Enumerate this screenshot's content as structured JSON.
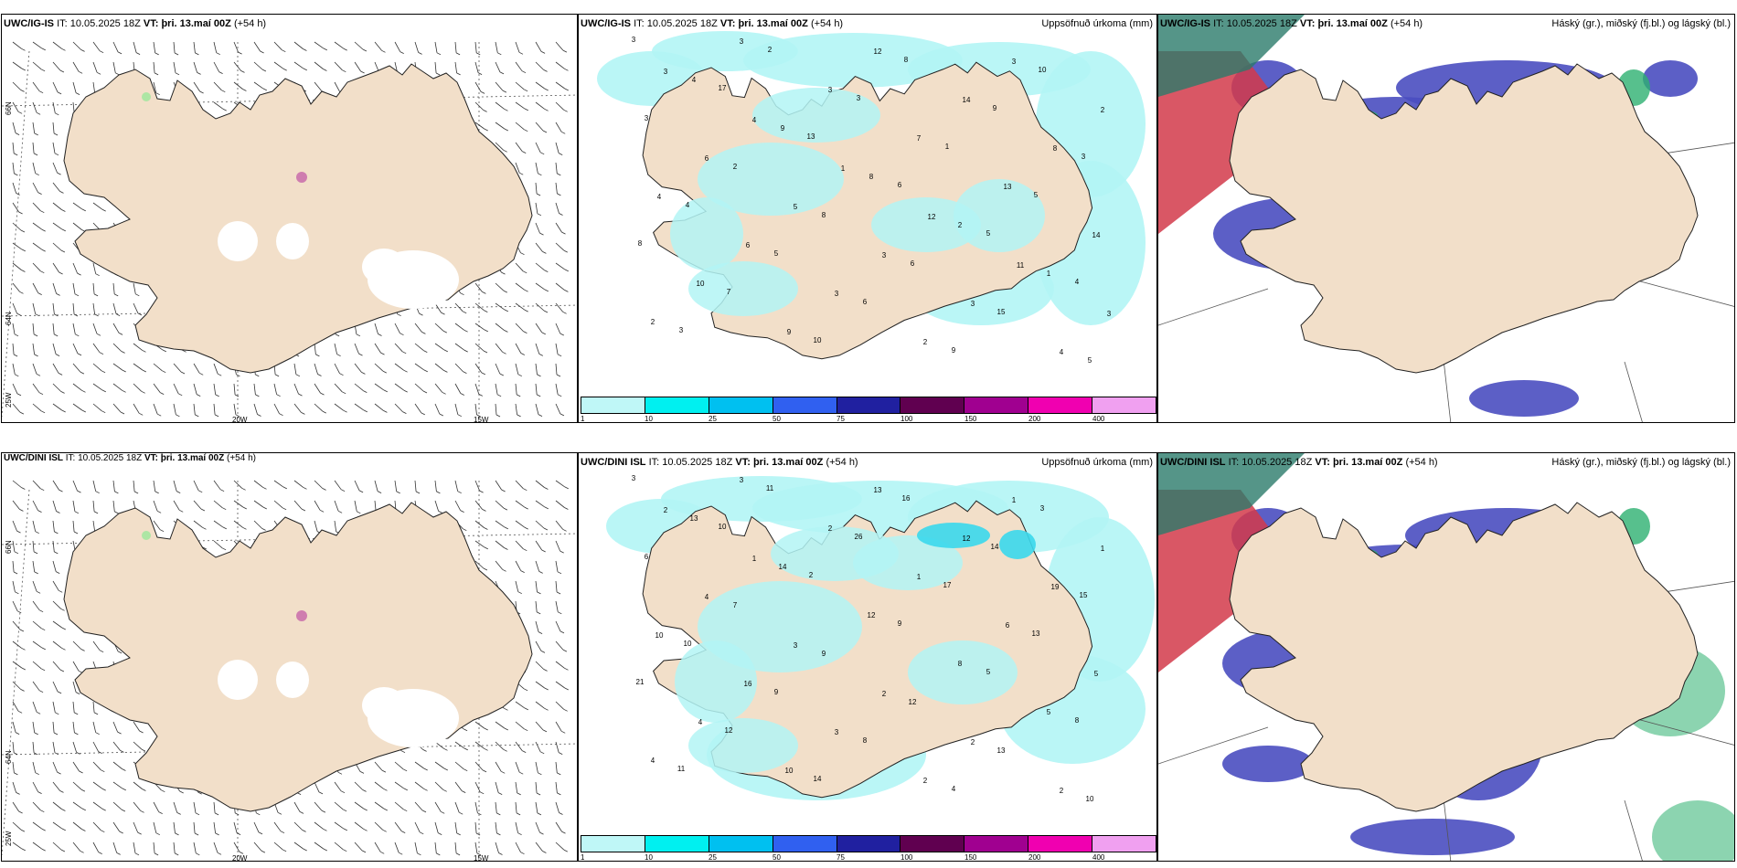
{
  "rows": [
    {
      "wind_panel": {
        "model": "UWC/IG-IS",
        "it_label": "IT:",
        "it_value": "10.05.2025 18Z",
        "vt_label": "VT: þri. 13.maí 00Z",
        "lead": "(+54 h)"
      },
      "precip_panel": {
        "model": "UWC/IG-IS",
        "it_label": "IT:",
        "it_value": "10.05.2025 18Z",
        "vt_label": "VT: þri. 13.maí 00Z",
        "lead": "(+54 h)",
        "right_title": "Uppsöfnuð úrkoma (mm)"
      },
      "cloud_panel": {
        "model": "UWC/IG-IS",
        "it_label": "IT:",
        "it_value": "10.05.2025 18Z",
        "vt_label": "VT: þri. 13.maí 00Z",
        "lead": "(+54 h)",
        "right_title": "Háský (gr.), miðský (fj.bl.) og lágský (bl.)"
      }
    },
    {
      "wind_panel": {
        "model": "UWC/DINI ISL",
        "it_label": "IT:",
        "it_value": "10.05.2025 18Z",
        "vt_label": "VT: þri. 13.maí 00Z",
        "lead": "(+54 h)"
      },
      "precip_panel": {
        "model": "UWC/DINI ISL",
        "it_label": "IT:",
        "it_value": "10.05.2025 18Z",
        "vt_label": "VT: þri. 13.maí 00Z",
        "lead": "(+54 h)",
        "right_title": "Uppsöfnuð úrkoma (mm)"
      },
      "cloud_panel": {
        "model": "UWC/DINI ISL",
        "it_label": "IT:",
        "it_value": "10.05.2025 18Z",
        "vt_label": "VT: þri. 13.maí 00Z",
        "lead": "(+54 h)",
        "right_title": "Háský (gr.), miðský (fj.bl.) og lágský (bl.)"
      }
    }
  ],
  "grid_labels": {
    "lat_66": "66N",
    "lat_64": "64N",
    "lon_25": "25W",
    "lon_20": "20W",
    "lon_15": "15W"
  },
  "precip_scale": {
    "labels": [
      "1",
      "10",
      "25",
      "50",
      "75",
      "100",
      "150",
      "200",
      "400"
    ],
    "colors": [
      "#bff7f7",
      "#00f0f0",
      "#00c0f0",
      "#3060f0",
      "#2020a0",
      "#600050",
      "#a00090",
      "#f000b0",
      "#f0a0f0"
    ]
  },
  "precip_numbers_top": [
    "3",
    "17",
    "13",
    "6",
    "5",
    "4",
    "3",
    "2",
    "3",
    "1",
    "5",
    "8",
    "7",
    "10",
    "8",
    "9",
    "3",
    "4",
    "5",
    "6",
    "9",
    "10",
    "3",
    "2",
    "8",
    "6",
    "15",
    "5",
    "4",
    "9",
    "8",
    "2",
    "1",
    "2",
    "3",
    "3",
    "7",
    "13",
    "14",
    "10",
    "9",
    "12",
    "14",
    "8",
    "4",
    "6",
    "3",
    "2",
    "3",
    "2",
    "6",
    "5",
    "3",
    "3",
    "4",
    "3",
    "4",
    "1",
    "12",
    "11",
    "3"
  ],
  "precip_numbers_bottom": [
    "3",
    "10",
    "2",
    "9",
    "5",
    "8",
    "11",
    "11",
    "26",
    "17",
    "13",
    "21",
    "12",
    "14",
    "16",
    "14",
    "15",
    "10",
    "9",
    "8",
    "4",
    "3",
    "6",
    "7",
    "9",
    "12",
    "13",
    "10",
    "13",
    "14",
    "12",
    "8",
    "5",
    "4",
    "3",
    "2",
    "1",
    "6",
    "5",
    "4",
    "10",
    "13",
    "12",
    "19",
    "10",
    "16",
    "3",
    "2",
    "1",
    "1",
    "4",
    "3",
    "2",
    "2",
    "2",
    "2",
    "1"
  ],
  "colors": {
    "land": "#f2dfc9",
    "precip_light": "#b3f5f5",
    "precip_mid": "#3ad8ec",
    "low_cloud": "#4a4ec0",
    "high_cloud": "#2db070",
    "mid_cloud": "#d23a4a"
  }
}
